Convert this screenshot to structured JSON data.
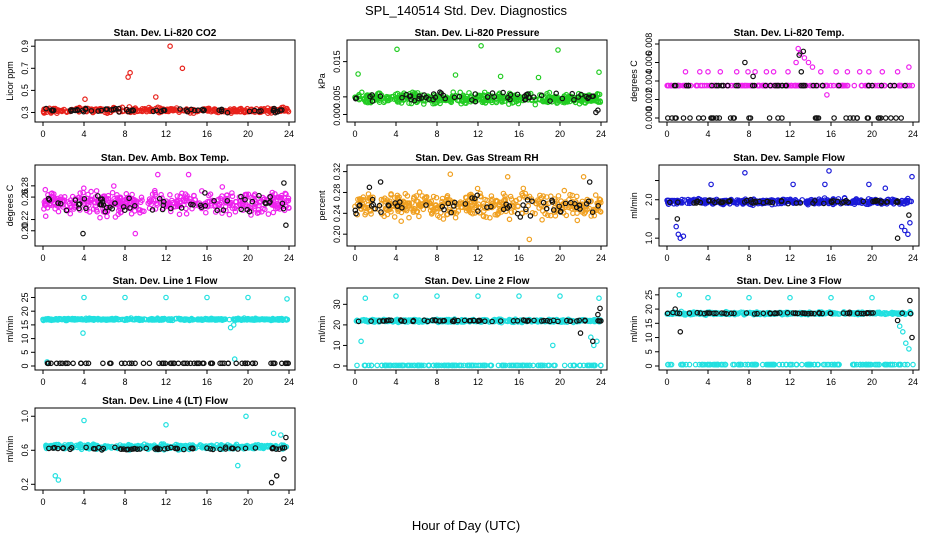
{
  "figure": {
    "title": "SPL_140514  Std. Dev. Diagnostics",
    "xlabel": "Hour of Day (UTC)"
  },
  "chart_data": [
    {
      "type": "scatter",
      "title": "Stan. Dev. Li-820 CO2",
      "ylabel": "Licor ppm",
      "xlim": [
        0,
        24
      ],
      "ylim": [
        0.25,
        0.92
      ],
      "xticks": [
        0,
        4,
        8,
        12,
        16,
        20,
        24
      ],
      "yticks": [
        0.3,
        0.5,
        0.7,
        0.9
      ],
      "ytick_labels": [
        "0.3",
        "0.5",
        "0.7",
        "0.9"
      ],
      "series": [
        {
          "name": "red",
          "color": "#e8211a",
          "band": {
            "center": 0.32,
            "spread": 0.04,
            "count": 300
          },
          "outliers": [
            [
              8.3,
              0.62
            ],
            [
              8.5,
              0.66
            ],
            [
              12.4,
              0.9
            ],
            [
              13.6,
              0.7
            ],
            [
              11.0,
              0.44
            ],
            [
              4.1,
              0.42
            ]
          ]
        },
        {
          "name": "black",
          "color": "#111111",
          "band": {
            "center": 0.32,
            "spread": 0.03,
            "count": 60
          },
          "outliers": []
        }
      ]
    },
    {
      "type": "scatter",
      "title": "Stan. Dev. Li-820 Pressure",
      "ylabel": "kPa",
      "xlim": [
        0,
        24
      ],
      "ylim": [
        -0.001,
        0.02
      ],
      "xticks": [
        0,
        4,
        8,
        12,
        16,
        20,
        24
      ],
      "yticks": [
        0.0,
        0.005,
        0.015
      ],
      "ytick_labels": [
        "0.000",
        "0.005",
        "0.015"
      ],
      "series": [
        {
          "name": "green",
          "color": "#22cc22",
          "band": {
            "center": 0.0045,
            "spread": 0.0025,
            "count": 420
          },
          "outliers": [
            [
              0.3,
              0.0115
            ],
            [
              4.1,
              0.0185
            ],
            [
              12.3,
              0.0195
            ],
            [
              19.8,
              0.0183
            ],
            [
              23.8,
              0.012
            ],
            [
              9.8,
              0.0112
            ],
            [
              14.2,
              0.0108
            ],
            [
              17.9,
              0.0105
            ]
          ]
        },
        {
          "name": "black",
          "color": "#111111",
          "band": {
            "center": 0.005,
            "spread": 0.002,
            "count": 60
          },
          "outliers": [
            [
              23.5,
              0.0006
            ],
            [
              23.7,
              0.0012
            ]
          ]
        }
      ]
    },
    {
      "type": "scatter",
      "title": "Stan. Dev. Li-820 Temp.",
      "ylabel": "degrees C",
      "xlim": [
        0,
        24
      ],
      "ylim": [
        0.0,
        0.008
      ],
      "xticks": [
        0,
        4,
        8,
        12,
        16,
        20,
        24
      ],
      "yticks": [
        0.0,
        0.002,
        0.004,
        0.006,
        0.008
      ],
      "ytick_labels": [
        "0.000",
        "0.002",
        "0.004",
        "0.006",
        "0.008"
      ],
      "series": [
        {
          "name": "magenta-line",
          "color": "#ee22ee",
          "levels": [
            0.0035
          ],
          "level_count": 140,
          "outliers": [
            [
              1.8,
              0.005
            ],
            [
              3.2,
              0.005
            ],
            [
              4.0,
              0.005
            ],
            [
              5.2,
              0.005
            ],
            [
              6.8,
              0.005
            ],
            [
              7.9,
              0.005
            ],
            [
              8.6,
              0.005
            ],
            [
              9.7,
              0.005
            ],
            [
              10.4,
              0.005
            ],
            [
              11.8,
              0.005
            ],
            [
              12.6,
              0.006
            ],
            [
              12.8,
              0.0075
            ],
            [
              13.0,
              0.007
            ],
            [
              13.4,
              0.0065
            ],
            [
              13.8,
              0.006
            ],
            [
              14.2,
              0.0055
            ],
            [
              15.0,
              0.005
            ],
            [
              15.6,
              0.0025
            ],
            [
              16.5,
              0.005
            ],
            [
              17.6,
              0.005
            ],
            [
              18.8,
              0.005
            ],
            [
              19.7,
              0.005
            ],
            [
              21.0,
              0.005
            ],
            [
              22.5,
              0.005
            ],
            [
              23.6,
              0.0055
            ]
          ]
        },
        {
          "name": "black",
          "color": "#111111",
          "levels": [
            0.0,
            0.0035
          ],
          "level_count": 40,
          "outliers": [
            [
              7.6,
              0.006
            ],
            [
              12.9,
              0.0068
            ],
            [
              13.3,
              0.0072
            ],
            [
              8.4,
              0.0045
            ],
            [
              13.1,
              0.005
            ]
          ]
        }
      ]
    },
    {
      "type": "scatter",
      "title": "Stan. Dev. Amb. Box Temp.",
      "ylabel": "degrees C",
      "xlim": [
        0,
        24
      ],
      "ylim": [
        0.18,
        0.31
      ],
      "xticks": [
        0,
        4,
        8,
        12,
        16,
        20,
        24
      ],
      "yticks": [
        0.2,
        0.22,
        0.26,
        0.28
      ],
      "ytick_labels": [
        "0.20",
        "0.22",
        "0.26",
        "0.28"
      ],
      "series": [
        {
          "name": "magenta",
          "color": "#ee22ee",
          "band": {
            "center": 0.25,
            "spread": 0.035,
            "count": 420
          },
          "outliers": [
            [
              9.0,
              0.195
            ],
            [
              14.2,
              0.3
            ],
            [
              11.2,
              0.3
            ]
          ]
        },
        {
          "name": "black",
          "color": "#111111",
          "band": {
            "center": 0.25,
            "spread": 0.025,
            "count": 60
          },
          "outliers": [
            [
              3.9,
              0.195
            ],
            [
              23.5,
              0.285
            ],
            [
              23.7,
              0.21
            ]
          ]
        }
      ]
    },
    {
      "type": "scatter",
      "title": "Stan. Dev. Gas Stream RH",
      "ylabel": "percent",
      "xlim": [
        0,
        24
      ],
      "ylim": [
        0.185,
        0.325
      ],
      "xticks": [
        0,
        4,
        8,
        12,
        16,
        20,
        24
      ],
      "yticks": [
        0.2,
        0.24,
        0.28,
        0.32
      ],
      "ytick_labels": [
        "0.20",
        "0.24",
        "0.28",
        "0.32"
      ],
      "series": [
        {
          "name": "orange",
          "color": "#f0a020",
          "band": {
            "center": 0.255,
            "spread": 0.04,
            "count": 420
          },
          "outliers": [
            [
              9.3,
              0.315
            ],
            [
              14.9,
              0.31
            ],
            [
              22.3,
              0.31
            ],
            [
              17.0,
              0.19
            ]
          ]
        },
        {
          "name": "black",
          "color": "#111111",
          "band": {
            "center": 0.255,
            "spread": 0.03,
            "count": 60
          },
          "outliers": [
            [
              1.4,
              0.29
            ],
            [
              22.9,
              0.3
            ],
            [
              2.5,
              0.3
            ]
          ]
        }
      ]
    },
    {
      "type": "scatter",
      "title": "Stan. Dev. Sample Flow",
      "ylabel": "ml/min",
      "xlim": [
        0,
        24
      ],
      "ylim": [
        0.9,
        2.8
      ],
      "xticks": [
        0,
        4,
        8,
        12,
        16,
        20,
        24
      ],
      "yticks": [
        1.0,
        1.5,
        2.0,
        2.5
      ],
      "ytick_labels": [
        "1.0",
        "",
        "2.0",
        ""
      ],
      "series": [
        {
          "name": "blue",
          "color": "#1a1ad8",
          "band": {
            "center": 1.95,
            "spread": 0.12,
            "count": 380
          },
          "outliers": [
            [
              0.9,
              1.3
            ],
            [
              1.1,
              1.1
            ],
            [
              1.3,
              1.0
            ],
            [
              1.6,
              1.05
            ],
            [
              4.3,
              2.4
            ],
            [
              7.6,
              2.7
            ],
            [
              12.3,
              2.4
            ],
            [
              15.8,
              2.75
            ],
            [
              15.4,
              2.4
            ],
            [
              19.7,
              2.4
            ],
            [
              21.3,
              2.3
            ],
            [
              22.9,
              1.3
            ],
            [
              23.2,
              1.2
            ],
            [
              23.5,
              1.1
            ],
            [
              23.9,
              2.6
            ],
            [
              23.7,
              1.4
            ]
          ]
        },
        {
          "name": "black",
          "color": "#111111",
          "band": {
            "center": 1.95,
            "spread": 0.08,
            "count": 60
          },
          "outliers": [
            [
              1.0,
              1.5
            ],
            [
              22.5,
              1.0
            ],
            [
              23.6,
              1.6
            ]
          ]
        }
      ]
    },
    {
      "type": "scatter",
      "title": "Stan. Dev. Line 1 Flow",
      "ylabel": "ml/min",
      "xlim": [
        0,
        24
      ],
      "ylim": [
        0,
        27
      ],
      "xticks": [
        0,
        4,
        8,
        12,
        16,
        20,
        24
      ],
      "yticks": [
        0,
        5,
        10,
        15,
        20,
        25
      ],
      "ytick_labels": [
        "0",
        "5",
        "10",
        "15",
        "20",
        "25"
      ],
      "series": [
        {
          "name": "cyan",
          "color": "#22e0e0",
          "band": {
            "center": 17.0,
            "spread": 0.6,
            "count": 380
          },
          "outliers": [
            [
              4.0,
              25.0
            ],
            [
              8.0,
              25.0
            ],
            [
              12.0,
              25.0
            ],
            [
              16.0,
              25.0
            ],
            [
              20.0,
              25.0
            ],
            [
              23.8,
              24.5
            ],
            [
              3.9,
              12.0
            ],
            [
              18.7,
              2.5
            ],
            [
              18.3,
              14.0
            ],
            [
              18.6,
              15.0
            ],
            [
              0.4,
              1.5
            ]
          ]
        },
        {
          "name": "black",
          "color": "#111111",
          "levels": [
            1.0
          ],
          "level_count": 70,
          "outliers": []
        }
      ]
    },
    {
      "type": "scatter",
      "title": "Stan. Dev. Line 2 Flow",
      "ylabel": "ml/min",
      "xlim": [
        0,
        24
      ],
      "ylim": [
        0,
        36
      ],
      "xticks": [
        0,
        4,
        8,
        12,
        16,
        20,
        24
      ],
      "yticks": [
        0,
        10,
        20,
        30
      ],
      "ytick_labels": [
        "0",
        "10",
        "20",
        "30"
      ],
      "series": [
        {
          "name": "cyan",
          "color": "#22e0e0",
          "band": {
            "center": 22.0,
            "spread": 1.2,
            "count": 380
          },
          "outliers": [
            [
              1.0,
              33.0
            ],
            [
              4.0,
              34.0
            ],
            [
              8.0,
              34.0
            ],
            [
              12.0,
              34.0
            ],
            [
              16.0,
              34.0
            ],
            [
              20.0,
              34.0
            ],
            [
              23.8,
              33.0
            ],
            [
              0.6,
              12.0
            ],
            [
              19.3,
              10.0
            ],
            [
              23.3,
              10.0
            ],
            [
              23.0,
              14.0
            ],
            [
              23.6,
              12.0
            ]
          ]
        },
        {
          "name": "cyan-zero",
          "color": "#22e0e0",
          "levels": [
            0.3
          ],
          "level_count": 150,
          "outliers": []
        },
        {
          "name": "black",
          "color": "#111111",
          "band": {
            "center": 22.0,
            "spread": 0.6,
            "count": 60
          },
          "outliers": [
            [
              22.0,
              16.0
            ],
            [
              23.2,
              12.0
            ],
            [
              23.7,
              25.0
            ],
            [
              23.9,
              28.0
            ]
          ]
        }
      ]
    },
    {
      "type": "scatter",
      "title": "Stan. Dev. Line 3 Flow",
      "ylabel": "ml/min",
      "xlim": [
        0,
        24
      ],
      "ylim": [
        0,
        26
      ],
      "xticks": [
        0,
        4,
        8,
        12,
        16,
        20,
        24
      ],
      "yticks": [
        0,
        5,
        10,
        15,
        20,
        25
      ],
      "ytick_labels": [
        "0",
        "5",
        "10",
        "15",
        "20",
        "25"
      ],
      "series": [
        {
          "name": "cyan",
          "color": "#22e0e0",
          "band": {
            "center": 18.5,
            "spread": 0.8,
            "count": 380
          },
          "outliers": [
            [
              1.2,
              25.0
            ],
            [
              4.0,
              24.0
            ],
            [
              8.0,
              24.0
            ],
            [
              12.0,
              24.0
            ],
            [
              16.0,
              24.0
            ],
            [
              20.0,
              24.0
            ],
            [
              22.7,
              14.0
            ],
            [
              23.3,
              8.0
            ],
            [
              23.6,
              6.0
            ],
            [
              23.0,
              12.0
            ]
          ]
        },
        {
          "name": "cyan-zero",
          "color": "#22e0e0",
          "levels": [
            0.5
          ],
          "level_count": 150,
          "outliers": []
        },
        {
          "name": "black",
          "color": "#111111",
          "band": {
            "center": 18.5,
            "spread": 0.4,
            "count": 60
          },
          "outliers": [
            [
              0.8,
              20.0
            ],
            [
              1.3,
              12.0
            ],
            [
              22.5,
              16.0
            ],
            [
              23.7,
              23.0
            ],
            [
              23.9,
              10.0
            ]
          ]
        }
      ]
    },
    {
      "type": "scatter",
      "title": "Stan. Dev. Line 4 (LT) Flow",
      "ylabel": "ml/min",
      "xlim": [
        0,
        24
      ],
      "ylim": [
        0.18,
        1.05
      ],
      "xticks": [
        0,
        4,
        8,
        12,
        16,
        20,
        24
      ],
      "yticks": [
        0.2,
        0.6,
        1.0
      ],
      "ytick_labels": [
        "0.2",
        "0.6",
        "1.0"
      ],
      "series": [
        {
          "name": "cyan",
          "color": "#22e0e0",
          "band": {
            "center": 0.64,
            "spread": 0.05,
            "count": 380
          },
          "outliers": [
            [
              1.2,
              0.3
            ],
            [
              1.5,
              0.25
            ],
            [
              4.0,
              0.95
            ],
            [
              12.0,
              0.9
            ],
            [
              19.8,
              1.0
            ],
            [
              19.0,
              0.42
            ],
            [
              22.5,
              0.8
            ],
            [
              23.2,
              0.78
            ]
          ]
        },
        {
          "name": "black",
          "color": "#111111",
          "band": {
            "center": 0.62,
            "spread": 0.03,
            "count": 60
          },
          "outliers": [
            [
              22.3,
              0.22
            ],
            [
              22.8,
              0.3
            ],
            [
              23.5,
              0.5
            ],
            [
              23.7,
              0.75
            ]
          ]
        }
      ]
    }
  ]
}
